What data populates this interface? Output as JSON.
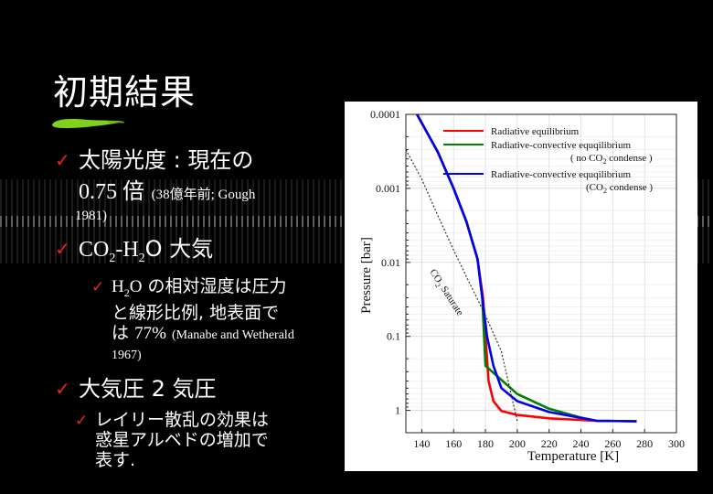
{
  "slide": {
    "title": "初期結果",
    "items": [
      {
        "text_a": "太陽光度 : 現在の",
        "text_b": "0.75 倍",
        "note": "(38億年前; Gough",
        "note_b": "1981)"
      },
      {
        "co2": "CO",
        "co2_sub": "2",
        "dash": "-H",
        "h2o_sub": "2",
        "rest": "O 大気",
        "sub": {
          "h": "H",
          "h_sub": "2",
          "o": "O",
          "line1": "の相対湿度は圧力",
          "line2": "と線形比例, 地表面で",
          "line3a": "は",
          "line3b": "77%",
          "note": "(Manabe and Wetherald",
          "note_b": "1967)"
        }
      },
      {
        "text": "大気圧 2 気圧",
        "sub": {
          "line1": "レイリー散乱の効果は",
          "line2": "惑星アルベドの増加で",
          "line3": "表す."
        }
      }
    ]
  },
  "chart_data": {
    "type": "line",
    "xlabel": "Temperature  [K]",
    "ylabel": "Pressure  [bar]",
    "xlim": [
      130,
      300
    ],
    "ylim_log": [
      0.0001,
      2
    ],
    "x_ticks": [
      "140",
      "160",
      "180",
      "200",
      "220",
      "240",
      "260",
      "280",
      "300"
    ],
    "y_ticks": [
      "0.0001",
      "0.001",
      "0.01",
      "0.1",
      "1"
    ],
    "y_tick_values": [
      0.0001,
      0.001,
      0.01,
      0.1,
      1
    ],
    "grid": true,
    "legend_position": "top-right",
    "legend": [
      {
        "label": "Radiative equilibrium",
        "color": "#ff0000"
      },
      {
        "label": "Radiative-convective equqilibrium",
        "label2": "( no CO",
        "label2_sub": "2",
        "label2_end": " condense )",
        "color": "#008000"
      },
      {
        "label": "Radiative-convective equqilibrium",
        "label2": "(CO",
        "label2_sub": "2",
        "label2_end": " condense )",
        "color": "#0000ee"
      }
    ],
    "annotation": {
      "text": "CO",
      "sub": "2",
      "text_end": " Saturate"
    },
    "series": [
      {
        "key": "radiative",
        "color": "#ff0000",
        "x": [
          137,
          150,
          160,
          168,
          175,
          178.5,
          180,
          182,
          185,
          190,
          200,
          220,
          250,
          275
        ],
        "y": [
          0.0001,
          0.00032,
          0.001,
          0.0028,
          0.009,
          0.03,
          0.1,
          0.4,
          0.75,
          1.02,
          1.15,
          1.28,
          1.38,
          1.4
        ]
      },
      {
        "key": "rc_no_condense",
        "color": "#008000",
        "x": [
          137,
          150,
          160,
          168,
          175,
          178,
          180,
          200,
          220,
          240,
          250,
          275
        ],
        "y": [
          0.0001,
          0.00032,
          0.001,
          0.0028,
          0.009,
          0.03,
          0.25,
          0.6,
          0.95,
          1.25,
          1.38,
          1.4
        ]
      },
      {
        "key": "rc_condense",
        "color": "#0000ee",
        "x": [
          137,
          150,
          160,
          168,
          175,
          178,
          181,
          185,
          190,
          200,
          220,
          250,
          275
        ],
        "y": [
          0.0001,
          0.00032,
          0.001,
          0.0028,
          0.009,
          0.03,
          0.1,
          0.25,
          0.5,
          0.75,
          1.05,
          1.38,
          1.4
        ]
      },
      {
        "key": "co2_saturate",
        "color": "#333333",
        "dashed": true,
        "x": [
          130,
          140,
          150,
          160,
          170,
          180,
          190,
          200
        ],
        "y": [
          0.0003,
          0.00075,
          0.0023,
          0.0068,
          0.019,
          0.052,
          0.16,
          1.4
        ]
      }
    ]
  },
  "colors": {
    "background": "#000000",
    "check": "#e8261b",
    "brush": "#7ed21c"
  }
}
